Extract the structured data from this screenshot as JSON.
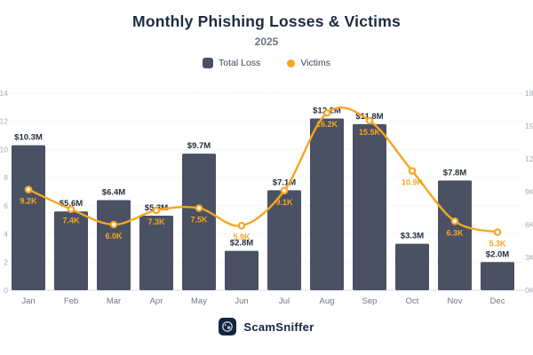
{
  "footer": {
    "brand": "ScamSniffer"
  },
  "colors": {
    "bar": "#4a5163",
    "line": "#f5a623",
    "title": "#1e2a3e",
    "subtitle": "#6b7280",
    "bar_label": "#262f3d",
    "axis_text": "#a6acb5",
    "month_text": "#6f7684",
    "grid": "#e3e6ea",
    "baseline": "#d8dbe0",
    "brand_navy": "#152441"
  },
  "chart_data": {
    "type": "bar+line combo",
    "title": "Monthly Phishing Losses & Victims",
    "subtitle": "2025",
    "legend_position": "top",
    "grid": "dotted horizontal",
    "categories": [
      "Jan",
      "Feb",
      "Mar",
      "Apr",
      "May",
      "Jun",
      "Jul",
      "Aug",
      "Sep",
      "Oct",
      "Nov",
      "Dec"
    ],
    "series": [
      {
        "name": "Total Loss",
        "type": "bar",
        "axis": "left",
        "unit": "$M",
        "color": "#4a5163",
        "values": [
          10.3,
          5.6,
          6.4,
          5.3,
          9.7,
          2.8,
          7.1,
          12.2,
          11.8,
          3.3,
          7.8,
          2.0
        ],
        "labels": [
          "$10.3M",
          "$5.6M",
          "$6.4M",
          "$5.3M",
          "$9.7M",
          "$2.8M",
          "$7.1M",
          "$12.2M",
          "$11.8M",
          "$3.3M",
          "$7.8M",
          "$2.0M"
        ]
      },
      {
        "name": "Victims",
        "type": "line",
        "axis": "right",
        "unit": "K",
        "color": "#f5a623",
        "values": [
          9.2,
          7.4,
          6.0,
          7.3,
          7.5,
          5.9,
          9.1,
          16.2,
          15.5,
          10.9,
          6.3,
          5.3
        ],
        "labels": [
          "9.2K",
          "7.4K",
          "6.0K",
          "7.3K",
          "7.5K",
          "5.9K",
          "9.1K",
          "16.2K",
          "15.5K",
          "10.9K",
          "6.3K",
          "5.3K"
        ]
      }
    ],
    "left_axis": {
      "range": [
        0,
        14
      ],
      "step": 2,
      "tick_labels": [
        "0",
        "2",
        "4",
        "6",
        "8",
        "10",
        "12",
        "14"
      ]
    },
    "right_axis": {
      "range": [
        0,
        18
      ],
      "step": 3,
      "tick_labels": [
        "0K",
        "3K",
        "6K",
        "9K",
        "12K",
        "15K",
        "18K"
      ]
    }
  }
}
